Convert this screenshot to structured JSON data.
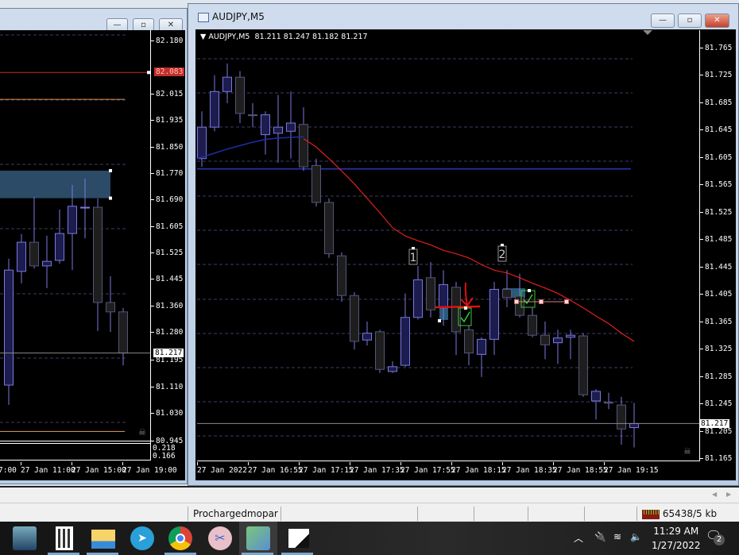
{
  "left_window": {
    "buttons": [
      "minimize",
      "restore",
      "close"
    ],
    "price_axis": [
      "82.180",
      "82.015",
      "81.935",
      "81.850",
      "81.770",
      "81.690",
      "81.605",
      "81.525",
      "81.445",
      "81.360",
      "81.280",
      "81.195",
      "81.110",
      "81.030",
      "80.945"
    ],
    "red_line_price_label": "82.083",
    "current_price_label": "81.217",
    "subwindow_axis": [
      "0.218",
      "0.166"
    ],
    "time_axis": [
      "7:00",
      "27 Jan 11:00",
      "27 Jan 15:00",
      "27 Jan 19:00"
    ],
    "candles": [
      [
        81.118,
        81.508,
        81.057,
        81.473
      ],
      [
        81.469,
        81.584,
        81.432,
        81.559
      ],
      [
        81.559,
        81.699,
        81.478,
        81.486
      ],
      [
        81.486,
        81.579,
        81.417,
        81.5
      ],
      [
        81.503,
        81.66,
        81.493,
        81.586
      ],
      [
        81.586,
        81.736,
        81.473,
        81.67
      ],
      [
        81.667,
        81.755,
        81.571,
        81.667
      ],
      [
        81.667,
        81.694,
        81.285,
        81.373
      ],
      [
        81.373,
        81.454,
        81.282,
        81.344
      ],
      [
        81.344,
        81.356,
        81.179,
        81.217
      ]
    ]
  },
  "right_window": {
    "title": "AUDJPY,M5",
    "buttons": [
      "minimize",
      "restore",
      "close"
    ],
    "chart_header": "AUDJPY,M5  81.211 81.247 81.182 81.217",
    "price_axis": [
      "81.765",
      "81.725",
      "81.685",
      "81.645",
      "81.605",
      "81.565",
      "81.525",
      "81.485",
      "81.445",
      "81.405",
      "81.365",
      "81.325",
      "81.285",
      "81.245",
      "81.205",
      "81.165"
    ],
    "current_price_label": "81.217",
    "time_axis": [
      "27 Jan 2022",
      "27 Jan 16:55",
      "27 Jan 17:15",
      "27 Jan 17:35",
      "27 Jan 17:55",
      "27 Jan 18:15",
      "27 Jan 18:35",
      "27 Jan 18:55",
      "27 Jan 19:15"
    ],
    "trade_labels": [
      "1",
      "2"
    ],
    "candles": [
      [
        81.604,
        81.673,
        81.592,
        81.65
      ],
      [
        81.65,
        81.726,
        81.644,
        81.702
      ],
      [
        81.702,
        81.743,
        81.685,
        81.723
      ],
      [
        81.723,
        81.732,
        81.656,
        81.67
      ],
      [
        81.668,
        81.685,
        81.65,
        81.667
      ],
      [
        81.639,
        81.673,
        81.61,
        81.668
      ],
      [
        81.641,
        81.697,
        81.598,
        81.65
      ],
      [
        81.644,
        81.702,
        81.604,
        81.656
      ],
      [
        81.654,
        81.679,
        81.586,
        81.592
      ],
      [
        81.594,
        81.604,
        81.534,
        81.54
      ],
      [
        81.54,
        81.546,
        81.459,
        81.465
      ],
      [
        81.462,
        81.467,
        81.395,
        81.404
      ],
      [
        81.404,
        81.409,
        81.325,
        81.337
      ],
      [
        81.339,
        81.366,
        81.331,
        81.349
      ],
      [
        81.351,
        81.354,
        81.291,
        81.296
      ],
      [
        81.293,
        81.308,
        81.291,
        81.3
      ],
      [
        81.302,
        81.407,
        81.3,
        81.372
      ],
      [
        81.372,
        81.447,
        81.369,
        81.427
      ],
      [
        81.43,
        81.453,
        81.372,
        81.383
      ],
      [
        81.386,
        81.441,
        81.36,
        81.42
      ],
      [
        81.416,
        81.424,
        81.317,
        81.351
      ],
      [
        81.354,
        81.36,
        81.302,
        81.32
      ],
      [
        81.318,
        81.343,
        81.285,
        81.34
      ],
      [
        81.34,
        81.424,
        81.317,
        81.413
      ],
      [
        81.413,
        81.441,
        81.387,
        81.401
      ],
      [
        81.403,
        81.436,
        81.372,
        81.375
      ],
      [
        81.375,
        81.387,
        81.343,
        81.346
      ],
      [
        81.346,
        81.366,
        81.311,
        81.332
      ],
      [
        81.335,
        81.354,
        81.304,
        81.342
      ],
      [
        81.343,
        81.354,
        81.311,
        81.346
      ],
      [
        81.345,
        81.349,
        81.256,
        81.259
      ],
      [
        81.25,
        81.267,
        81.223,
        81.264
      ],
      [
        81.248,
        81.262,
        81.238,
        81.247
      ],
      [
        81.244,
        81.256,
        81.186,
        81.209
      ],
      [
        81.211,
        81.247,
        81.182,
        81.217
      ]
    ],
    "ma_blue": [
      81.604,
      81.612,
      81.618,
      81.623,
      81.628,
      81.632,
      81.634,
      81.635,
      81.636
    ],
    "ma_red_start_index": 8,
    "ma_red": [
      81.633,
      81.621,
      81.604,
      81.586,
      81.567,
      81.546,
      81.525,
      81.503,
      81.491,
      81.484,
      81.478,
      81.47,
      81.465,
      81.459,
      81.449,
      81.441,
      81.437,
      81.43,
      81.422,
      81.415,
      81.407,
      81.397,
      81.386,
      81.374,
      81.363,
      81.349,
      81.337
    ],
    "horizontal_line_price": 81.589
  },
  "status_bar": {
    "profile": "Prochargedmopar",
    "connection": "65438/5 kb"
  },
  "taskbar": {
    "apps": [
      "computer-icon",
      "calculator-icon",
      "file-explorer-icon",
      "telegram-icon",
      "chrome-icon",
      "snipping-tool-icon",
      "metatrader-icon",
      "sticky-notes-icon"
    ],
    "time": "11:29 AM",
    "date": "1/27/2022",
    "notifications": "2"
  },
  "colors": {
    "bull_fill": "#1c1c4e",
    "candle_outline": "#7b78e0",
    "bear_fill": "#1e1e1e",
    "ma_red": "#e0201c",
    "ma_blue": "#1e2ea8",
    "grid": "#3c3c66",
    "price_tag_red": "#c0302a"
  }
}
